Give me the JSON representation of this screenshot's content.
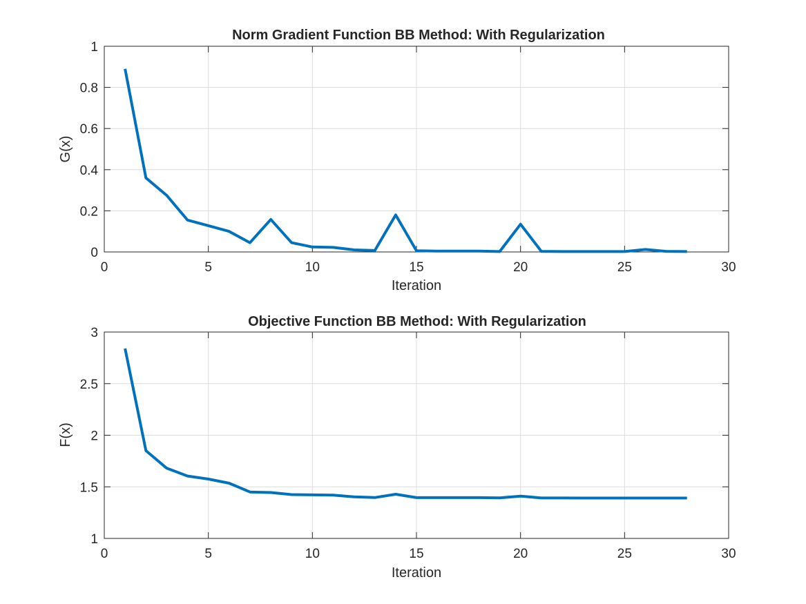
{
  "chart_data": [
    {
      "type": "line",
      "title": "Norm Gradient Function BB Method: With Regularization",
      "xlabel": "Iteration",
      "ylabel": "G(x)",
      "xlim": [
        0,
        30
      ],
      "ylim": [
        0,
        1
      ],
      "xticks": [
        0,
        5,
        10,
        15,
        20,
        25,
        30
      ],
      "xtick_labels": [
        "0",
        "5",
        "10",
        "15",
        "20",
        "25",
        "30"
      ],
      "yticks": [
        0,
        0.2,
        0.4,
        0.6,
        0.8,
        1
      ],
      "ytick_labels": [
        "0",
        "0.2",
        "0.4",
        "0.6",
        "0.8",
        "1"
      ],
      "grid": true,
      "color": "#0072BD",
      "x": [
        1,
        2,
        3,
        4,
        5,
        6,
        7,
        8,
        9,
        10,
        11,
        12,
        13,
        14,
        15,
        16,
        17,
        18,
        19,
        20,
        21,
        22,
        23,
        24,
        25,
        26,
        27,
        28
      ],
      "y": [
        0.89,
        0.36,
        0.275,
        0.155,
        0.128,
        0.1,
        0.045,
        0.158,
        0.045,
        0.024,
        0.022,
        0.01,
        0.007,
        0.18,
        0.006,
        0.004,
        0.004,
        0.004,
        0.002,
        0.135,
        0.003,
        0.002,
        0.002,
        0.002,
        0.002,
        0.012,
        0.003,
        0.002
      ]
    },
    {
      "type": "line",
      "title": "Objective Function BB Method: With Regularization",
      "xlabel": "Iteration",
      "ylabel": "F(x)",
      "xlim": [
        0,
        30
      ],
      "ylim": [
        1,
        3
      ],
      "xticks": [
        0,
        5,
        10,
        15,
        20,
        25,
        30
      ],
      "xtick_labels": [
        "0",
        "5",
        "10",
        "15",
        "20",
        "25",
        "30"
      ],
      "yticks": [
        1,
        1.5,
        2,
        2.5,
        3
      ],
      "ytick_labels": [
        "1",
        "1.5",
        "2",
        "2.5",
        "3"
      ],
      "grid": true,
      "color": "#0072BD",
      "x": [
        1,
        2,
        3,
        4,
        5,
        6,
        7,
        8,
        9,
        10,
        11,
        12,
        13,
        14,
        15,
        16,
        17,
        18,
        19,
        20,
        21,
        22,
        23,
        24,
        25,
        26,
        27,
        28
      ],
      "y": [
        2.84,
        1.85,
        1.68,
        1.605,
        1.575,
        1.535,
        1.45,
        1.445,
        1.425,
        1.422,
        1.42,
        1.403,
        1.396,
        1.428,
        1.395,
        1.395,
        1.395,
        1.395,
        1.393,
        1.41,
        1.392,
        1.392,
        1.391,
        1.391,
        1.391,
        1.391,
        1.391,
        1.391
      ]
    }
  ]
}
